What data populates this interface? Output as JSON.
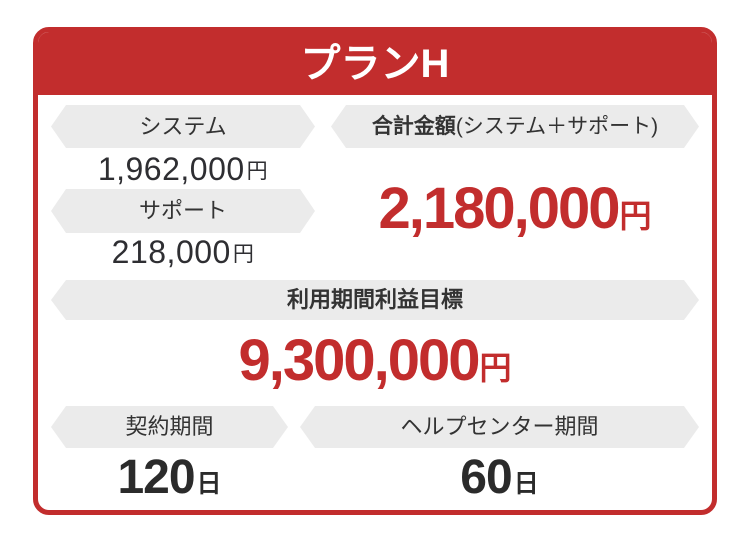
{
  "plan": {
    "title": "プランH",
    "system": {
      "label": "システム",
      "amount": "1,962,000",
      "unit": "円"
    },
    "support": {
      "label": "サポート",
      "amount": "218,000",
      "unit": "円"
    },
    "total": {
      "label_main": "合計金額",
      "label_sub": "(システム＋サポート)",
      "amount": "2,180,000",
      "unit": "円"
    },
    "profit": {
      "label": "利用期間利益目標",
      "amount": "9,300,000",
      "unit": "円"
    },
    "contract": {
      "label": "契約期間",
      "value": "120",
      "unit": "日"
    },
    "help_center": {
      "label": "ヘルプセンター期間",
      "value": "60",
      "unit": "日"
    }
  },
  "colors": {
    "accent_red": "#c22d2d",
    "band_gray": "#ebebeb",
    "value_dark": "#2e2e32",
    "day_dark": "#2b2b2b"
  }
}
